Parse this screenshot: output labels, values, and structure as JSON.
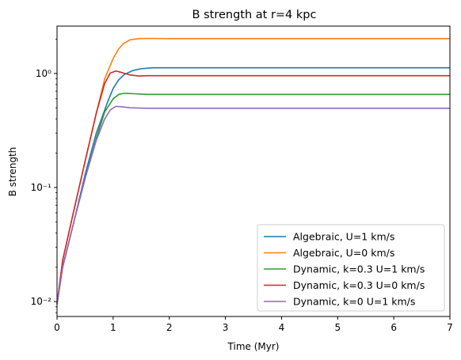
{
  "chart_data": {
    "type": "line",
    "title": "B strength at r=4 kpc",
    "xlabel": "Time (Myr)",
    "ylabel": "B strength",
    "yscale": "log",
    "xlim": [
      0,
      7
    ],
    "ylim": [
      0.0074,
      2.6
    ],
    "grid": false,
    "legend_position": "lower-right",
    "x_ticks": [
      0,
      1,
      2,
      3,
      4,
      5,
      6,
      7
    ],
    "x_tick_labels": [
      "0",
      "1",
      "2",
      "3",
      "4",
      "5",
      "6",
      "7"
    ],
    "y_ticks": [
      0.01,
      0.1,
      1
    ],
    "y_tick_labels": [
      "10⁻²",
      "10⁻¹",
      "10⁰"
    ],
    "series": [
      {
        "name": "Algebraic, U=1 km/s",
        "color": "#1f77b4",
        "points": [
          [
            0,
            0.0095
          ],
          [
            0.1,
            0.02
          ],
          [
            0.3,
            0.05
          ],
          [
            0.5,
            0.13
          ],
          [
            0.7,
            0.3
          ],
          [
            0.9,
            0.56
          ],
          [
            1.0,
            0.74
          ],
          [
            1.1,
            0.88
          ],
          [
            1.2,
            0.98
          ],
          [
            1.35,
            1.06
          ],
          [
            1.5,
            1.1
          ],
          [
            1.7,
            1.12
          ],
          [
            2.0,
            1.12
          ],
          [
            3,
            1.12
          ],
          [
            4,
            1.12
          ],
          [
            5,
            1.12
          ],
          [
            6,
            1.12
          ],
          [
            7,
            1.12
          ]
        ]
      },
      {
        "name": "Algebraic, U=0 km/s",
        "color": "#ff7f0e",
        "points": [
          [
            0,
            0.0095
          ],
          [
            0.1,
            0.023
          ],
          [
            0.3,
            0.063
          ],
          [
            0.5,
            0.17
          ],
          [
            0.7,
            0.45
          ],
          [
            0.85,
            0.9
          ],
          [
            1.0,
            1.35
          ],
          [
            1.1,
            1.65
          ],
          [
            1.2,
            1.85
          ],
          [
            1.3,
            1.97
          ],
          [
            1.45,
            2.02
          ],
          [
            1.6,
            2.03
          ],
          [
            2.0,
            2.02
          ],
          [
            3,
            2.02
          ],
          [
            4,
            2.02
          ],
          [
            5,
            2.02
          ],
          [
            6,
            2.02
          ],
          [
            7,
            2.02
          ]
        ]
      },
      {
        "name": "Dynamic, k=0.3 U=1 km/s",
        "color": "#2ca02c",
        "points": [
          [
            0,
            0.0095
          ],
          [
            0.1,
            0.02
          ],
          [
            0.3,
            0.05
          ],
          [
            0.5,
            0.12
          ],
          [
            0.7,
            0.27
          ],
          [
            0.85,
            0.46
          ],
          [
            1.0,
            0.6
          ],
          [
            1.1,
            0.655
          ],
          [
            1.2,
            0.67
          ],
          [
            1.35,
            0.665
          ],
          [
            1.6,
            0.655
          ],
          [
            2.0,
            0.655
          ],
          [
            3,
            0.655
          ],
          [
            4,
            0.655
          ],
          [
            5,
            0.655
          ],
          [
            6,
            0.655
          ],
          [
            7,
            0.655
          ]
        ]
      },
      {
        "name": "Dynamic, k=0.3 U=0 km/s",
        "color": "#d62728",
        "points": [
          [
            0,
            0.0095
          ],
          [
            0.1,
            0.023
          ],
          [
            0.3,
            0.063
          ],
          [
            0.5,
            0.17
          ],
          [
            0.7,
            0.45
          ],
          [
            0.85,
            0.82
          ],
          [
            0.95,
            1.01
          ],
          [
            1.05,
            1.05
          ],
          [
            1.15,
            1.02
          ],
          [
            1.3,
            0.97
          ],
          [
            1.45,
            0.95
          ],
          [
            1.6,
            0.955
          ],
          [
            2.0,
            0.955
          ],
          [
            3,
            0.955
          ],
          [
            4,
            0.955
          ],
          [
            5,
            0.955
          ],
          [
            6,
            0.955
          ],
          [
            7,
            0.955
          ]
        ]
      },
      {
        "name": "Dynamic, k=0 U=1 km/s",
        "color": "#9467bd",
        "points": [
          [
            0,
            0.0095
          ],
          [
            0.1,
            0.02
          ],
          [
            0.3,
            0.05
          ],
          [
            0.5,
            0.12
          ],
          [
            0.7,
            0.26
          ],
          [
            0.85,
            0.4
          ],
          [
            0.95,
            0.48
          ],
          [
            1.05,
            0.515
          ],
          [
            1.15,
            0.51
          ],
          [
            1.3,
            0.5
          ],
          [
            1.6,
            0.495
          ],
          [
            2.0,
            0.495
          ],
          [
            3,
            0.495
          ],
          [
            4,
            0.495
          ],
          [
            5,
            0.495
          ],
          [
            6,
            0.495
          ],
          [
            7,
            0.495
          ]
        ]
      }
    ]
  }
}
